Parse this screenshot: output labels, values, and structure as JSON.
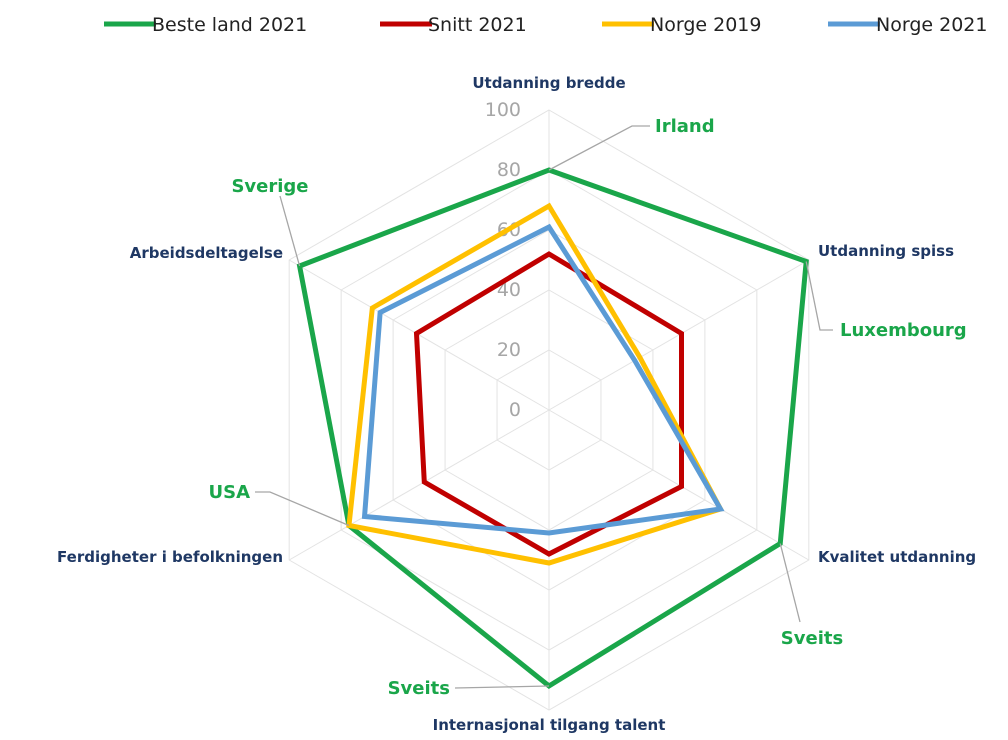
{
  "chart_data": {
    "type": "radar",
    "categories": [
      "Utdanning bredde",
      "Utdanning spiss",
      "Kvalitet utdanning",
      "Internasjonal tilgang talent",
      "Ferdigheter i befolkningen",
      "Arbeidsdeltagelse"
    ],
    "series": [
      {
        "name": "Beste land 2021",
        "color": "#1aa64a",
        "values": [
          80,
          99,
          89,
          92,
          77,
          96
        ]
      },
      {
        "name": "Snitt 2021",
        "color": "#c00000",
        "values": [
          52,
          51,
          51,
          48,
          48,
          51
        ]
      },
      {
        "name": "Norge 2019",
        "color": "#ffc000",
        "values": [
          68,
          35,
          66,
          51,
          77,
          68
        ]
      },
      {
        "name": "Norge 2021",
        "color": "#5b9bd5",
        "values": [
          61,
          33,
          66,
          41,
          71,
          65
        ]
      }
    ],
    "ylim": [
      0,
      100
    ],
    "yticks": [
      0,
      20,
      40,
      60,
      80,
      100
    ],
    "grid": true,
    "legend": "top",
    "annotations": [
      {
        "text": "Irland",
        "axis": 0
      },
      {
        "text": "Luxembourg",
        "axis": 1
      },
      {
        "text": "Sveits",
        "axis": 2
      },
      {
        "text": "Sveits",
        "axis": 3
      },
      {
        "text": "USA",
        "axis": 4
      },
      {
        "text": "Sverige",
        "axis": 5
      }
    ]
  }
}
